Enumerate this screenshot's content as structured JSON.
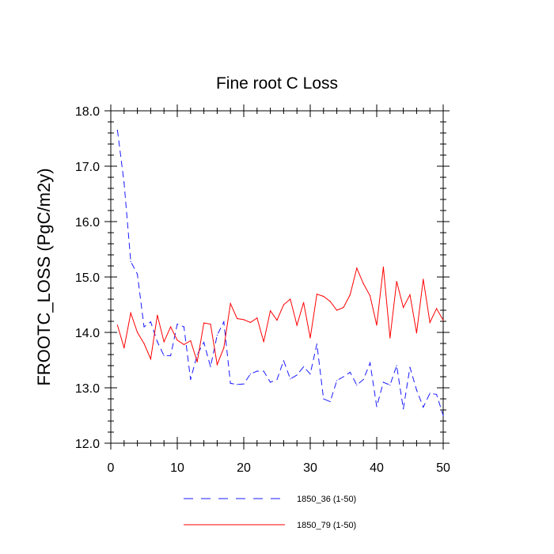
{
  "chart_data": {
    "type": "line",
    "title": "Fine root C Loss",
    "xlabel": "",
    "ylabel": "FROOTC_LOSS  (PgC/m2y)",
    "xlim": [
      0,
      50
    ],
    "ylim": [
      12.0,
      18.0
    ],
    "x_ticks": [
      0,
      10,
      20,
      30,
      40,
      50
    ],
    "x_tick_labels": [
      "0",
      "10",
      "20",
      "30",
      "40",
      "50"
    ],
    "y_ticks": [
      12.0,
      13.0,
      14.0,
      15.0,
      16.0,
      17.0,
      18.0
    ],
    "y_tick_labels": [
      "12.0",
      "13.0",
      "14.0",
      "15.0",
      "16.0",
      "17.0",
      "18.0"
    ],
    "grid": false,
    "legend_position": "bottom-center",
    "x": [
      1,
      2,
      3,
      4,
      5,
      6,
      7,
      8,
      9,
      10,
      11,
      12,
      13,
      14,
      15,
      16,
      17,
      18,
      19,
      20,
      21,
      22,
      23,
      24,
      25,
      26,
      27,
      28,
      29,
      30,
      31,
      32,
      33,
      34,
      35,
      36,
      37,
      38,
      39,
      40,
      41,
      42,
      43,
      44,
      45,
      46,
      47,
      48,
      49,
      50
    ],
    "series": [
      {
        "name": "1850_36 (1-50)",
        "color": "#1a1aff",
        "style": "dashed",
        "values": [
          17.65,
          16.7,
          15.28,
          15.05,
          14.1,
          14.19,
          13.83,
          13.58,
          13.58,
          14.15,
          14.1,
          13.15,
          13.6,
          13.82,
          13.38,
          13.95,
          14.19,
          13.08,
          13.06,
          13.07,
          13.25,
          13.3,
          13.3,
          13.1,
          13.15,
          13.49,
          13.16,
          13.23,
          13.38,
          13.25,
          13.79,
          12.8,
          12.75,
          13.13,
          13.2,
          13.28,
          13.05,
          13.15,
          13.45,
          12.66,
          13.1,
          13.05,
          13.4,
          12.62,
          13.37,
          12.96,
          12.65,
          12.9,
          12.88,
          12.5
        ]
      },
      {
        "name": "1850_79 (1-50)",
        "color": "#ff0000",
        "style": "solid",
        "values": [
          14.13,
          13.72,
          14.35,
          14.0,
          13.8,
          13.52,
          14.31,
          13.83,
          14.1,
          13.86,
          13.78,
          13.85,
          13.47,
          14.17,
          14.15,
          13.42,
          13.72,
          14.52,
          14.25,
          14.23,
          14.18,
          14.26,
          13.83,
          14.39,
          14.22,
          14.5,
          14.6,
          14.13,
          14.54,
          13.9,
          14.69,
          14.65,
          14.56,
          14.4,
          14.45,
          14.68,
          15.16,
          14.88,
          14.66,
          14.13,
          15.18,
          13.9,
          14.92,
          14.45,
          14.68,
          13.99,
          14.96,
          14.18,
          14.43,
          14.22
        ]
      }
    ]
  }
}
